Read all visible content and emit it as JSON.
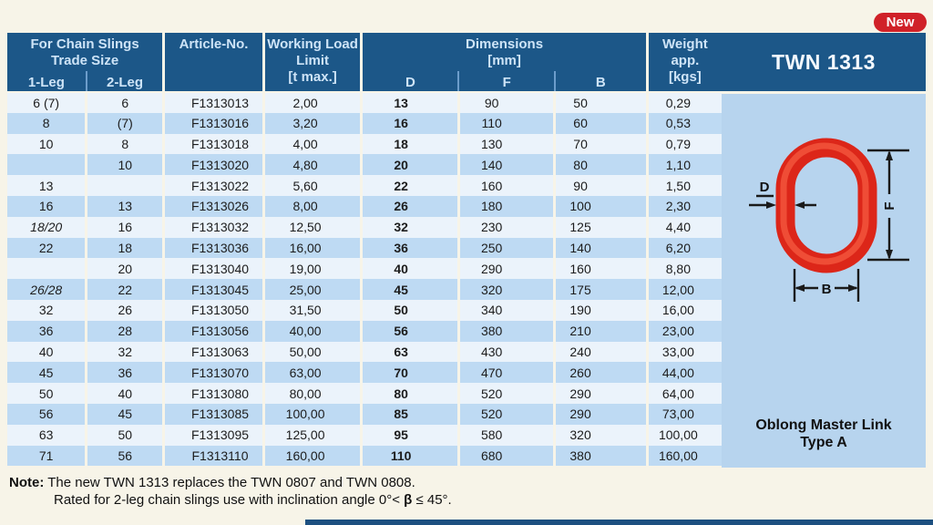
{
  "colors": {
    "page_bg": "#f7f4e8",
    "header_blue": "#1c5788",
    "row_light": "#ebf3fb",
    "row_blue": "#bedaf3",
    "panel_blue": "#b7d4ee",
    "link_red": "#dc2619",
    "badge_red": "#d02128",
    "bottom_bar_blue": "#1d5080"
  },
  "badge": {
    "label": "New"
  },
  "panel": {
    "model": "TWN 1313",
    "product_line1": "Oblong Master Link",
    "product_line2": "Type A",
    "diagram_labels": {
      "d": "D",
      "f": "F",
      "b": "B"
    }
  },
  "table": {
    "header": {
      "trade_size_line1": "For Chain Slings",
      "trade_size_line2": "Trade Size",
      "leg1": "1-Leg",
      "leg2": "2-Leg",
      "article": "Article-No.",
      "wll_line1": "Working Load",
      "wll_line2": "Limit",
      "wll_line3": "[t max.]",
      "dimensions_line1": "Dimensions",
      "dimensions_line2": "[mm]",
      "dim_d": "D",
      "dim_f": "F",
      "dim_b": "B",
      "weight_line1": "Weight",
      "weight_line2": "app.",
      "weight_line3": "[kgs]"
    },
    "rows": [
      {
        "leg1": "6 (7)",
        "leg2": "6",
        "article": "F1313013",
        "wll": "2,00",
        "d": "13",
        "f": "90",
        "b": "50",
        "weight": "0,29",
        "leg1_italic": false
      },
      {
        "leg1": "8",
        "leg2": "(7)",
        "article": "F1313016",
        "wll": "3,20",
        "d": "16",
        "f": "110",
        "b": "60",
        "weight": "0,53",
        "leg1_italic": false
      },
      {
        "leg1": "10",
        "leg2": "8",
        "article": "F1313018",
        "wll": "4,00",
        "d": "18",
        "f": "130",
        "b": "70",
        "weight": "0,79",
        "leg1_italic": false
      },
      {
        "leg1": "",
        "leg2": "10",
        "article": "F1313020",
        "wll": "4,80",
        "d": "20",
        "f": "140",
        "b": "80",
        "weight": "1,10",
        "leg1_italic": false
      },
      {
        "leg1": "13",
        "leg2": "",
        "article": "F1313022",
        "wll": "5,60",
        "d": "22",
        "f": "160",
        "b": "90",
        "weight": "1,50",
        "leg1_italic": false
      },
      {
        "leg1": "16",
        "leg2": "13",
        "article": "F1313026",
        "wll": "8,00",
        "d": "26",
        "f": "180",
        "b": "100",
        "weight": "2,30",
        "leg1_italic": false
      },
      {
        "leg1": "18/20",
        "leg2": "16",
        "article": "F1313032",
        "wll": "12,50",
        "d": "32",
        "f": "230",
        "b": "125",
        "weight": "4,40",
        "leg1_italic": true
      },
      {
        "leg1": "22",
        "leg2": "18",
        "article": "F1313036",
        "wll": "16,00",
        "d": "36",
        "f": "250",
        "b": "140",
        "weight": "6,20",
        "leg1_italic": false
      },
      {
        "leg1": "",
        "leg2": "20",
        "article": "F1313040",
        "wll": "19,00",
        "d": "40",
        "f": "290",
        "b": "160",
        "weight": "8,80",
        "leg1_italic": false
      },
      {
        "leg1": "26/28",
        "leg2": "22",
        "article": "F1313045",
        "wll": "25,00",
        "d": "45",
        "f": "320",
        "b": "175",
        "weight": "12,00",
        "leg1_italic": true
      },
      {
        "leg1": "32",
        "leg2": "26",
        "article": "F1313050",
        "wll": "31,50",
        "d": "50",
        "f": "340",
        "b": "190",
        "weight": "16,00",
        "leg1_italic": false
      },
      {
        "leg1": "36",
        "leg2": "28",
        "article": "F1313056",
        "wll": "40,00",
        "d": "56",
        "f": "380",
        "b": "210",
        "weight": "23,00",
        "leg1_italic": false
      },
      {
        "leg1": "40",
        "leg2": "32",
        "article": "F1313063",
        "wll": "50,00",
        "d": "63",
        "f": "430",
        "b": "240",
        "weight": "33,00",
        "leg1_italic": false
      },
      {
        "leg1": "45",
        "leg2": "36",
        "article": "F1313070",
        "wll": "63,00",
        "d": "70",
        "f": "470",
        "b": "260",
        "weight": "44,00",
        "leg1_italic": false
      },
      {
        "leg1": "50",
        "leg2": "40",
        "article": "F1313080",
        "wll": "80,00",
        "d": "80",
        "f": "520",
        "b": "290",
        "weight": "64,00",
        "leg1_italic": false
      },
      {
        "leg1": "56",
        "leg2": "45",
        "article": "F1313085",
        "wll": "100,00",
        "d": "85",
        "f": "520",
        "b": "290",
        "weight": "73,00",
        "leg1_italic": false
      },
      {
        "leg1": "63",
        "leg2": "50",
        "article": "F1313095",
        "wll": "125,00",
        "d": "95",
        "f": "580",
        "b": "320",
        "weight": "100,00",
        "leg1_italic": false
      },
      {
        "leg1": "71",
        "leg2": "56",
        "article": "F1313110",
        "wll": "160,00",
        "d": "110",
        "f": "680",
        "b": "380",
        "weight": "160,00",
        "leg1_italic": false
      }
    ]
  },
  "note": {
    "label": "Note:",
    "line1": " The new TWN 1313 replaces the TWN 0807 and TWN 0808.",
    "line2_prefix": "Rated for 2-leg chain slings use with inclination angle 0°< ",
    "line2_beta": "β",
    "line2_suffix": " ≤ 45°."
  }
}
